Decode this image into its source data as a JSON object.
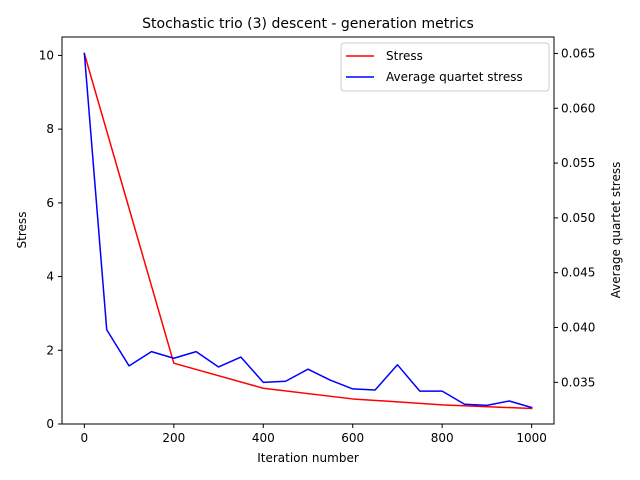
{
  "chart_data": {
    "type": "line",
    "title": "Stochastic trio (3) descent - generation metrics",
    "xlabel": "Iteration number",
    "ylabel": "Stress",
    "y2label": "Average quartet stress",
    "xlim": [
      -50,
      1050
    ],
    "ylim": [
      0,
      10.5
    ],
    "y2lim": [
      0.0312,
      0.0665
    ],
    "xticks": [
      0,
      200,
      400,
      600,
      800,
      1000
    ],
    "yticks": [
      0,
      2,
      4,
      6,
      8,
      10
    ],
    "y2ticks": [
      0.035,
      0.04,
      0.045,
      0.05,
      0.055,
      0.06,
      0.065
    ],
    "xtick_labels": [
      "0",
      "200",
      "400",
      "600",
      "800",
      "1000"
    ],
    "ytick_labels": [
      "0",
      "2",
      "4",
      "6",
      "8",
      "10"
    ],
    "y2tick_labels": [
      "0.035",
      "0.040",
      "0.045",
      "0.050",
      "0.055",
      "0.060",
      "0.065"
    ],
    "legend_position": "top-right",
    "grid": false,
    "series": [
      {
        "name": "Stress",
        "axis": "left",
        "color": "#ff0000",
        "x": [
          0,
          200,
          400,
          600,
          800,
          1000
        ],
        "values": [
          10.05,
          1.65,
          0.97,
          0.68,
          0.52,
          0.42
        ]
      },
      {
        "name": "Average quartet stress",
        "axis": "right",
        "color": "#0000ff",
        "x": [
          0,
          50,
          100,
          150,
          200,
          250,
          300,
          350,
          400,
          450,
          500,
          550,
          600,
          650,
          700,
          750,
          800,
          850,
          900,
          950,
          1000
        ],
        "values": [
          0.065,
          0.0398,
          0.0365,
          0.0378,
          0.0372,
          0.0378,
          0.0364,
          0.0373,
          0.035,
          0.0351,
          0.0362,
          0.0352,
          0.0344,
          0.0343,
          0.0366,
          0.0342,
          0.0342,
          0.033,
          0.0329,
          0.0333,
          0.0327
        ]
      }
    ]
  }
}
